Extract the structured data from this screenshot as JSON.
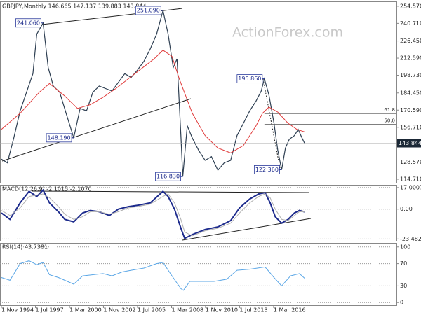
{
  "chart_data": [
    {
      "type": "line",
      "title": "GBPJPY,Monthly 146.665 147.137 139.883 143.844",
      "watermark": "ActionForex.com",
      "xlim": [
        1994.72,
        2025.8
      ],
      "ylim": [
        111.3,
        257.9
      ],
      "yticks": [
        {
          "value": 254.57,
          "label": "254.570"
        },
        {
          "value": 240.71,
          "label": "240.710"
        },
        {
          "value": 226.45,
          "label": "226.450"
        },
        {
          "value": 212.59,
          "label": "212.590"
        },
        {
          "value": 198.73,
          "label": "198.730"
        },
        {
          "value": 184.45,
          "label": "184.450"
        },
        {
          "value": 170.59,
          "label": "170.590"
        },
        {
          "value": 156.71,
          "label": "156.710"
        },
        {
          "value": 128.57,
          "label": "128.570"
        },
        {
          "value": 114.71,
          "label": "114.710"
        }
      ],
      "series": [
        {
          "name": "GBPJPY",
          "color": "#2e3f52",
          "x": [
            1994.83,
            1995.3,
            1995.8,
            1996.3,
            1996.8,
            1997.3,
            1997.6,
            1998.1,
            1998.5,
            1998.9,
            1999.4,
            1999.9,
            2000.5,
            2001.0,
            2001.5,
            2002.0,
            2002.5,
            2003.0,
            2003.5,
            2004.0,
            2004.5,
            2005.0,
            2005.5,
            2006.0,
            2006.5,
            2007.0,
            2007.5,
            2007.9,
            2008.3,
            2008.6,
            2008.9,
            2009.05,
            2009.4,
            2009.8,
            2010.3,
            2010.8,
            2011.3,
            2011.8,
            2012.3,
            2012.8,
            2013.3,
            2013.8,
            2014.3,
            2014.8,
            2015.2,
            2015.45,
            2015.8,
            2016.2,
            2016.5,
            2016.8,
            2017.1,
            2017.4,
            2017.8,
            2018.1,
            2018.4,
            2018.6
          ],
          "values": [
            131,
            128,
            148,
            170,
            185,
            200,
            232,
            241.06,
            205,
            190,
            185,
            168,
            148.19,
            172,
            170,
            185,
            190,
            188,
            186,
            193,
            200,
            197,
            203,
            210,
            220,
            232,
            251.09,
            232,
            205,
            212,
            150,
            116.83,
            158,
            148,
            138,
            130,
            133,
            122,
            128,
            130,
            150,
            160,
            170,
            178,
            186,
            195.86,
            183,
            160,
            138,
            122.36,
            140,
            147,
            150,
            155,
            148,
            143.844
          ]
        },
        {
          "name": "MA",
          "color": "#e03a3a",
          "x": [
            1994.83,
            1996.3,
            1997.8,
            1998.6,
            1999.8,
            2000.8,
            2001.8,
            2002.8,
            2003.8,
            2004.8,
            2005.8,
            2006.8,
            2007.5,
            2008.2,
            2008.8,
            2009.8,
            2010.8,
            2011.8,
            2012.8,
            2013.8,
            2014.8,
            2015.3,
            2015.8,
            2016.5,
            2017.3,
            2018.0,
            2018.6
          ],
          "values": [
            155,
            168,
            185,
            192,
            182,
            172,
            175,
            181,
            188,
            196,
            204,
            212,
            219,
            214,
            195,
            168,
            150,
            140,
            136,
            142,
            158,
            168,
            173,
            169,
            160,
            155,
            153
          ]
        }
      ],
      "annotations": [
        {
          "label": "241.060",
          "value": 241.06,
          "x": 1998.1
        },
        {
          "label": "251.090",
          "value": 251.09,
          "x": 2007.5
        },
        {
          "label": "148.190",
          "value": 148.19,
          "x": 2000.5
        },
        {
          "label": "195.860",
          "value": 195.86,
          "x": 2015.45
        },
        {
          "label": "116.830",
          "value": 116.83,
          "x": 2009.05
        },
        {
          "label": "122.360",
          "value": 122.36,
          "x": 2016.8
        }
      ],
      "fib_start": 2015.45,
      "fib_levels": [
        {
          "label": "61.8",
          "value": 167.78
        },
        {
          "label": "50.0",
          "value": 159.11
        }
      ]
    },
    {
      "type": "line",
      "title": "MACD(12,26,9) -2.1015 -2.1070",
      "xlim": [
        1994.72,
        2025.8
      ],
      "ylim": [
        -25.5,
        18.6
      ],
      "yticks": [
        17.0007,
        {
          "value": 0,
          "label": "0.00"
        },
        -23.4823
      ],
      "grid": true,
      "series": [
        {
          "name": "MACD",
          "color": "#1c2a8c",
          "x": [
            1994.83,
            1995.5,
            1996.3,
            1997.0,
            1997.6,
            1998.1,
            1998.6,
            1999.3,
            1999.8,
            2000.5,
            2001.2,
            2001.8,
            2002.5,
            2003.3,
            2004.0,
            2004.8,
            2005.5,
            2006.5,
            2007.5,
            2007.9,
            2008.4,
            2008.9,
            2009.2,
            2009.8,
            2010.8,
            2011.8,
            2012.8,
            2013.5,
            2014.3,
            2015.0,
            2015.5,
            2015.9,
            2016.3,
            2016.8,
            2017.3,
            2017.8,
            2018.2,
            2018.6
          ],
          "values": [
            -3,
            -8,
            5,
            14,
            10,
            15,
            5,
            -2,
            -8,
            -10,
            -3,
            -1,
            -2,
            -5,
            0,
            2,
            3,
            5,
            14,
            10,
            0,
            -15,
            -23,
            -20,
            -16,
            -14,
            -9,
            1,
            8,
            12,
            13,
            5,
            -6,
            -11,
            -8,
            -3,
            -1,
            -2.1015
          ]
        },
        {
          "name": "Signal",
          "color": "#b0b0b0",
          "x": [
            1994.83,
            1995.5,
            1996.3,
            1997.0,
            1997.6,
            1998.1,
            1998.6,
            1999.3,
            1999.8,
            2000.5,
            2001.2,
            2001.8,
            2002.5,
            2003.3,
            2004.0,
            2004.8,
            2005.5,
            2006.5,
            2007.5,
            2007.9,
            2008.4,
            2008.9,
            2009.2,
            2009.8,
            2010.8,
            2011.8,
            2012.8,
            2013.5,
            2014.3,
            2015.0,
            2015.5,
            2015.9,
            2016.3,
            2016.8,
            2017.3,
            2017.8,
            2018.2,
            2018.6
          ],
          "values": [
            -1,
            -5,
            1,
            10,
            11,
            12,
            9,
            2,
            -4,
            -8,
            -6,
            -2,
            -2,
            -4,
            -2,
            1,
            2,
            4,
            10,
            12,
            5,
            -8,
            -18,
            -21,
            -17,
            -15,
            -11,
            -3,
            5,
            10,
            12,
            9,
            0,
            -8,
            -9,
            -5,
            -2,
            -2.107
          ]
        }
      ]
    },
    {
      "type": "line",
      "title": "RSI(14) 43.7381",
      "xlim": [
        1994.72,
        2025.8
      ],
      "ylim": [
        -6,
        106
      ],
      "yticks": [
        100,
        70,
        30,
        0
      ],
      "grid": true,
      "xticks": [
        {
          "value": 1994.83,
          "label": "1 Nov 1994"
        },
        {
          "value": 1997.5,
          "label": "1 Jul 1997"
        },
        {
          "value": 2000.17,
          "label": "1 Mar 2000"
        },
        {
          "value": 2002.83,
          "label": "1 Nov 2002"
        },
        {
          "value": 2005.5,
          "label": "1 Jul 2005"
        },
        {
          "value": 2008.17,
          "label": "1 Mar 2008"
        },
        {
          "value": 2010.83,
          "label": "1 Nov 2010"
        },
        {
          "value": 2013.5,
          "label": "1 Jul 2013"
        },
        {
          "value": 2016.17,
          "label": "1 Mar 2016"
        }
      ],
      "series": [
        {
          "name": "RSI",
          "color": "#5aa6e6",
          "x": [
            1994.83,
            1995.5,
            1996.3,
            1997.0,
            1997.6,
            1998.1,
            1998.6,
            1999.3,
            2000.0,
            2000.5,
            2001.2,
            2002.0,
            2002.8,
            2003.5,
            2004.3,
            2005.0,
            2006.0,
            2007.0,
            2007.5,
            2008.2,
            2008.9,
            2009.1,
            2009.6,
            2010.5,
            2011.5,
            2012.5,
            2013.3,
            2014.3,
            2015.5,
            2016.2,
            2016.8,
            2017.5,
            2018.2,
            2018.6
          ],
          "values": [
            45,
            40,
            70,
            75,
            68,
            72,
            50,
            45,
            38,
            33,
            48,
            50,
            52,
            48,
            55,
            58,
            62,
            70,
            72,
            48,
            25,
            22,
            38,
            38,
            38,
            42,
            58,
            60,
            64,
            45,
            30,
            48,
            52,
            43.7381
          ]
        }
      ]
    }
  ]
}
